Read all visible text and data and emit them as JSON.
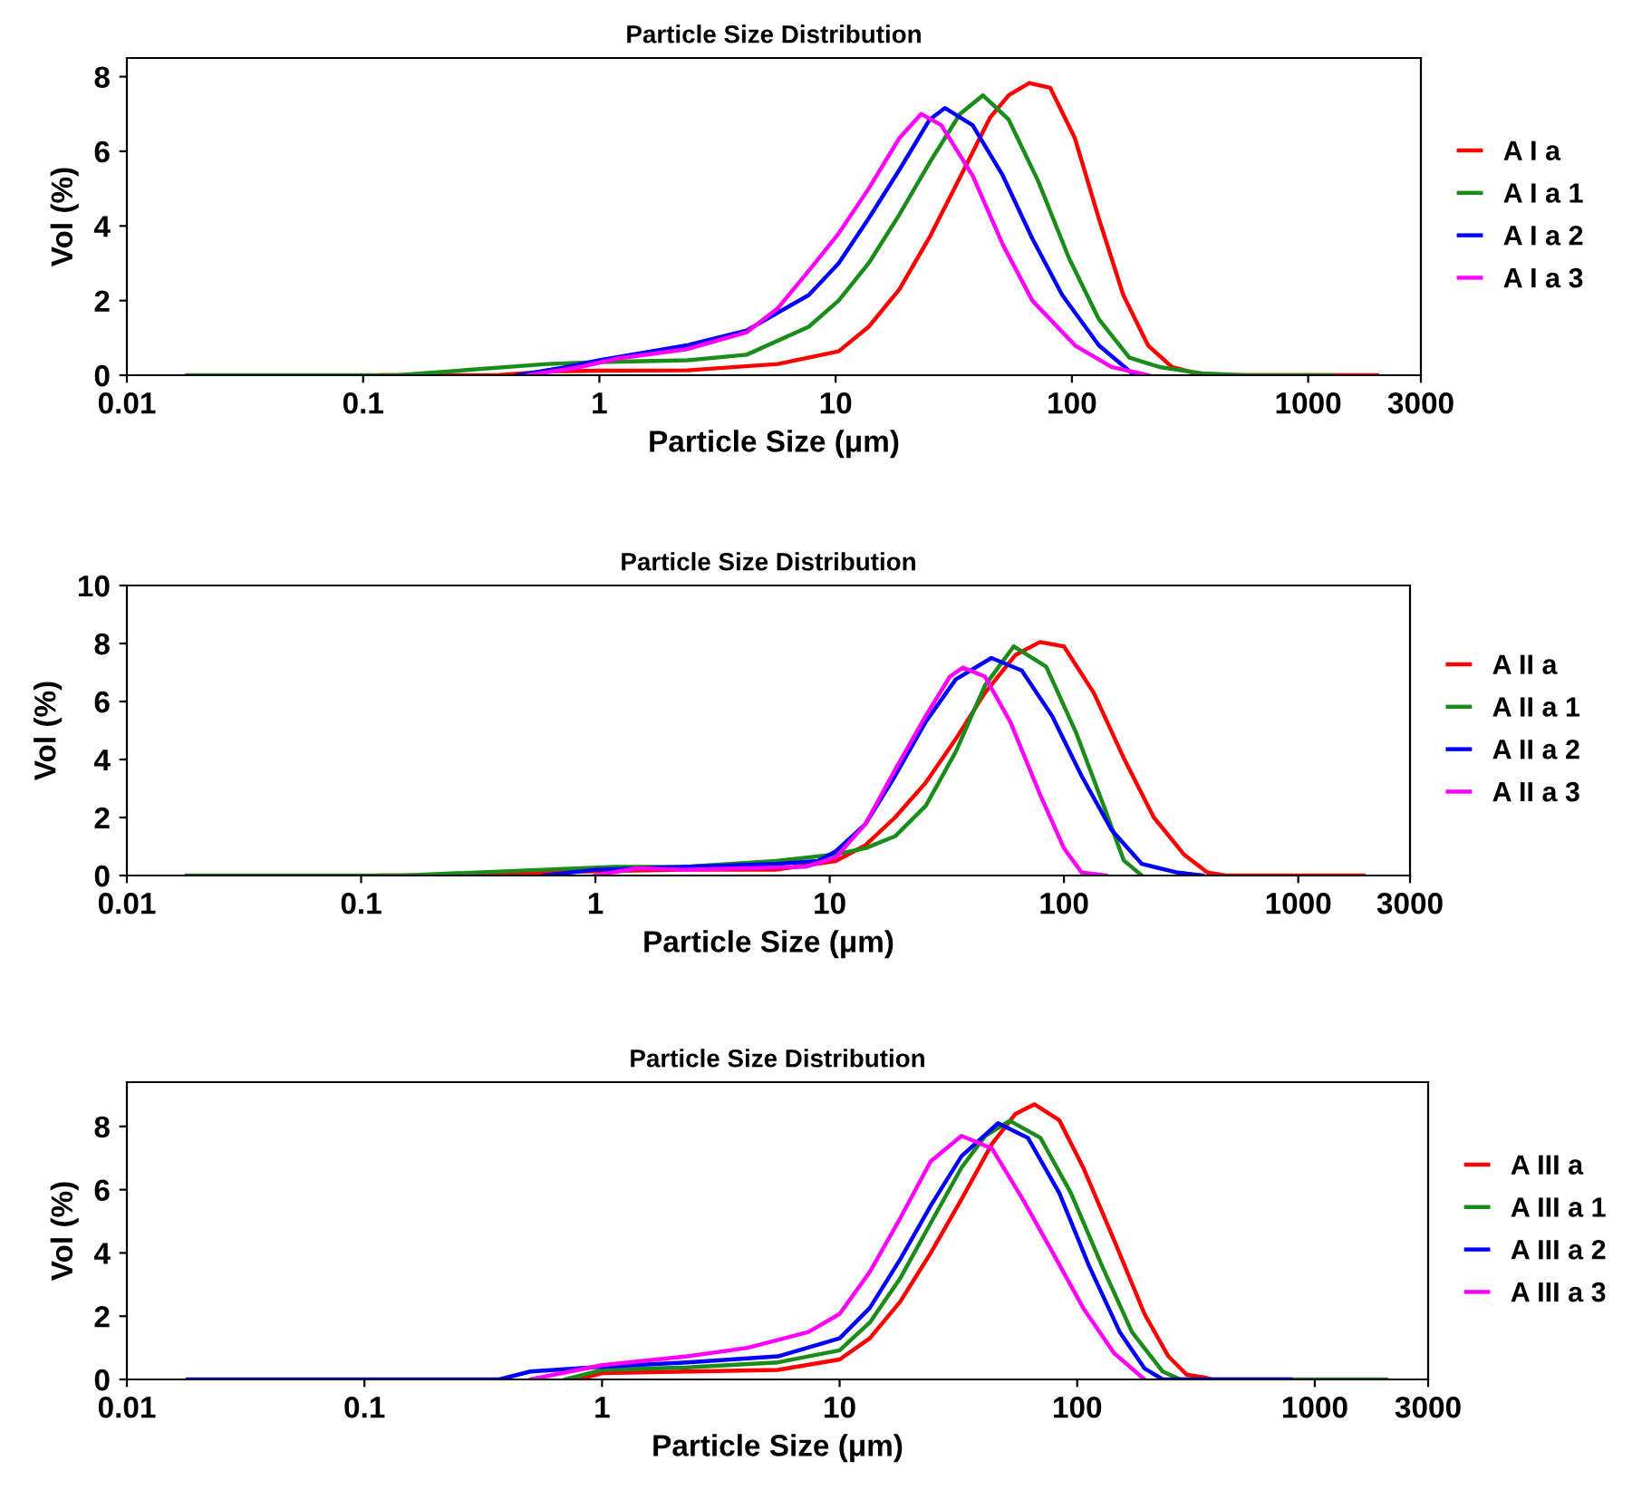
{
  "chart_data": [
    {
      "type": "line",
      "title": "Particle Size Distribution",
      "xlabel": "Particle Size (μm)",
      "ylabel": "Vol (%)",
      "log": "x",
      "xlim": [
        0.01,
        3000
      ],
      "xticks": [
        0.01,
        0.1,
        1,
        10,
        100,
        1000,
        3000
      ],
      "ylim": [
        0,
        8.5
      ],
      "yticks": [
        0,
        2,
        4,
        6,
        8
      ],
      "grid": false,
      "legend": "right",
      "marker": "none",
      "line_style": "solid",
      "series": [
        {
          "name": "A I a",
          "color": "#ff0000",
          "x": [
            0.12,
            0.37,
            0.6,
            1,
            2.35,
            5.7,
            10.3,
            13.8,
            18.6,
            25,
            33.6,
            45,
            54,
            66,
            81,
            103,
            130,
            165,
            210,
            265,
            335,
            420,
            1960
          ],
          "values": [
            0,
            0,
            0.1,
            0.12,
            0.13,
            0.3,
            0.64,
            1.3,
            2.3,
            3.7,
            5.3,
            6.9,
            7.5,
            7.83,
            7.7,
            6.35,
            4.2,
            2.15,
            0.8,
            0.22,
            0.05,
            0,
            0
          ]
        },
        {
          "name": "A I a 1",
          "color": "#1a8c1a",
          "x": [
            0.018,
            0.14,
            0.6,
            1,
            2.35,
            4.2,
            7.7,
            10.3,
            13.8,
            18.6,
            25,
            33.6,
            42,
            54,
            72,
            97,
            130,
            175,
            235,
            355,
            540,
            1260
          ],
          "values": [
            0,
            0,
            0.3,
            0.35,
            0.4,
            0.55,
            1.3,
            2.0,
            3.0,
            4.3,
            5.7,
            7.0,
            7.5,
            6.85,
            5.2,
            3.15,
            1.5,
            0.47,
            0.22,
            0.05,
            0,
            0
          ]
        },
        {
          "name": "A I a 2",
          "color": "#0000ff",
          "x": [
            0.45,
            0.7,
            1,
            2.35,
            4.2,
            7.7,
            10.3,
            13.8,
            18.6,
            25,
            29,
            38,
            51,
            68,
            91,
            130,
            180
          ],
          "values": [
            0,
            0.2,
            0.4,
            0.8,
            1.2,
            2.15,
            3.0,
            4.2,
            5.5,
            6.85,
            7.16,
            6.7,
            5.35,
            3.66,
            2.15,
            0.8,
            0.05
          ]
        },
        {
          "name": "A I a 3",
          "color": "#ff00ff",
          "x": [
            0.5,
            0.8,
            1.2,
            2.35,
            4.2,
            5.7,
            7.7,
            10.3,
            13.8,
            18.6,
            23,
            28,
            38,
            51,
            68,
            103,
            147,
            210
          ],
          "values": [
            0,
            0.2,
            0.45,
            0.7,
            1.15,
            1.8,
            2.8,
            3.8,
            5.0,
            6.35,
            7.0,
            6.7,
            5.35,
            3.5,
            2.0,
            0.8,
            0.22,
            0
          ]
        }
      ]
    },
    {
      "type": "line",
      "title": "Particle Size Distribution",
      "xlabel": "Particle Size (μm)",
      "ylabel": "Vol (%)",
      "log": "x",
      "xlim": [
        0.01,
        3000
      ],
      "xticks": [
        0.01,
        0.1,
        1,
        10,
        100,
        1000,
        3000
      ],
      "ylim": [
        0,
        10
      ],
      "yticks": [
        0,
        2,
        4,
        6,
        8,
        10
      ],
      "grid": false,
      "legend": "right",
      "marker": "none",
      "line_style": "solid",
      "series": [
        {
          "name": "A II a",
          "color": "#ff0000",
          "x": [
            0.12,
            0.18,
            1,
            2.4,
            5.9,
            10.6,
            14.2,
            19,
            25.7,
            34.5,
            46,
            62,
            79,
            100,
            134,
            180,
            242,
            325,
            410,
            490,
            1900
          ],
          "values": [
            0,
            0,
            0.15,
            0.2,
            0.2,
            0.5,
            1.04,
            2.0,
            3.2,
            4.7,
            6.3,
            7.6,
            8.05,
            7.9,
            6.3,
            4.05,
            2.0,
            0.73,
            0.1,
            0,
            0
          ]
        },
        {
          "name": "A II a 1",
          "color": "#1a8c1a",
          "x": [
            0.018,
            0.15,
            0.6,
            1.2,
            2.4,
            5.9,
            10.6,
            14.2,
            19,
            25.7,
            34.5,
            46,
            61,
            84,
            113,
            151,
            180,
            215
          ],
          "values": [
            0,
            0,
            0.2,
            0.3,
            0.3,
            0.5,
            0.73,
            0.94,
            1.35,
            2.4,
            4.26,
            6.55,
            7.9,
            7.2,
            4.9,
            2.2,
            0.52,
            0
          ]
        },
        {
          "name": "A II a 2",
          "color": "#0000ff",
          "x": [
            0.6,
            1,
            2.4,
            5.9,
            8.9,
            10.6,
            14.2,
            19,
            25.7,
            34.5,
            49,
            66,
            89,
            119,
            160,
            215,
            306,
            390
          ],
          "values": [
            0,
            0.2,
            0.3,
            0.4,
            0.5,
            0.83,
            1.77,
            3.43,
            5.3,
            6.76,
            7.5,
            7.07,
            5.5,
            3.43,
            1.56,
            0.4,
            0.1,
            0
          ]
        },
        {
          "name": "A II a 3",
          "color": "#ff00ff",
          "x": [
            1,
            1.5,
            2.4,
            7.9,
            10.6,
            14.2,
            19,
            25.7,
            32.6,
            37,
            46,
            59,
            79,
            100,
            119,
            151
          ],
          "values": [
            0,
            0.25,
            0.2,
            0.3,
            0.62,
            1.77,
            3.64,
            5.5,
            6.86,
            7.17,
            6.86,
            5.3,
            2.8,
            0.94,
            0.1,
            0
          ]
        }
      ]
    },
    {
      "type": "line",
      "title": "Particle Size Distribution",
      "xlabel": "Particle Size (μm)",
      "ylabel": "Vol (%)",
      "log": "x",
      "xlim": [
        0.01,
        3000
      ],
      "xticks": [
        0.01,
        0.1,
        1,
        10,
        100,
        1000,
        3000
      ],
      "ylim": [
        0,
        9.4
      ],
      "yticks": [
        0,
        2,
        4,
        6,
        8
      ],
      "grid": false,
      "legend": "right",
      "marker": "none",
      "line_style": "solid",
      "series": [
        {
          "name": "A III a",
          "color": "#ff0000",
          "x": [
            0.8,
            1,
            2.28,
            5.5,
            10,
            13.4,
            18,
            24.2,
            32.6,
            43.8,
            55,
            66,
            84,
            106,
            143,
            192,
            242,
            289,
            345,
            366
          ],
          "values": [
            0,
            0.2,
            0.25,
            0.3,
            0.63,
            1.3,
            2.46,
            4.0,
            5.7,
            7.45,
            8.4,
            8.7,
            8.2,
            6.7,
            4.4,
            2.07,
            0.73,
            0.15,
            0.06,
            0
          ]
        },
        {
          "name": "A III a 1",
          "color": "#1a8c1a",
          "x": [
            0.7,
            1,
            2.28,
            5.5,
            10,
            13.4,
            18,
            24.2,
            32.6,
            41,
            52,
            70,
            94,
            127,
            170,
            229,
            272,
            2000
          ],
          "values": [
            0,
            0.3,
            0.38,
            0.54,
            0.92,
            1.8,
            3.2,
            4.95,
            6.7,
            7.7,
            8.18,
            7.64,
            5.9,
            3.6,
            1.5,
            0.25,
            0,
            0
          ]
        },
        {
          "name": "A III a 2",
          "color": "#0000ff",
          "x": [
            0.018,
            0.37,
            0.5,
            1,
            2.28,
            5.5,
            10,
            13.4,
            18,
            24.2,
            32.6,
            46.4,
            62,
            84,
            112,
            151,
            192,
            229,
            790
          ],
          "values": [
            0,
            0,
            0.25,
            0.4,
            0.54,
            0.73,
            1.3,
            2.26,
            3.8,
            5.5,
            7.06,
            8.1,
            7.64,
            5.9,
            3.6,
            1.5,
            0.35,
            0,
            0
          ]
        },
        {
          "name": "A III a 3",
          "color": "#ff00ff",
          "x": [
            0.5,
            1,
            2.28,
            4.1,
            7.4,
            10,
            13.4,
            18,
            24.2,
            32.6,
            43.8,
            59,
            79,
            106,
            143,
            192
          ],
          "values": [
            0,
            0.45,
            0.73,
            1.0,
            1.5,
            2.07,
            3.4,
            5.1,
            6.9,
            7.7,
            7.3,
            5.7,
            4.0,
            2.26,
            0.83,
            0
          ]
        }
      ]
    }
  ]
}
